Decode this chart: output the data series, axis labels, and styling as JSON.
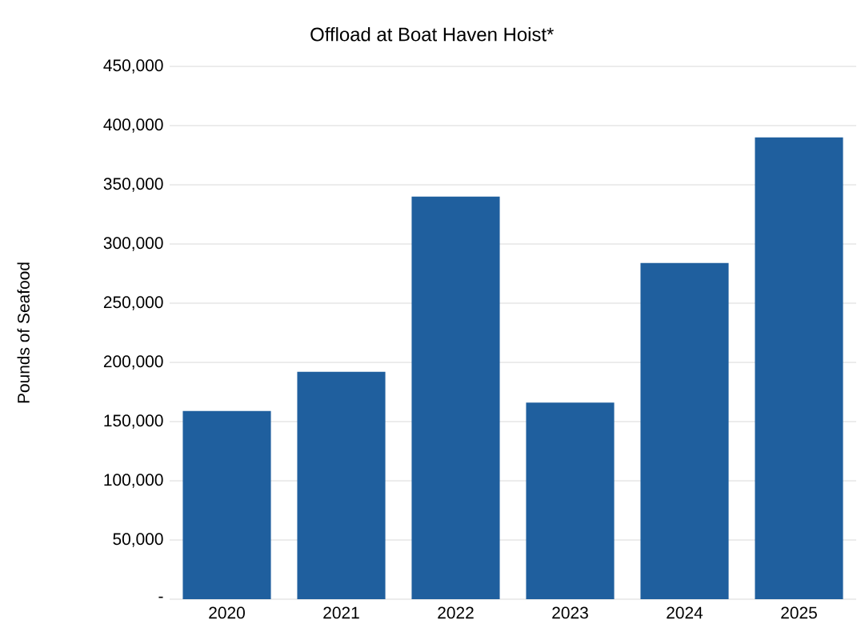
{
  "chart_data": {
    "type": "bar",
    "title": "Offload at Boat Haven Hoist*",
    "ylabel": "Pounds of Seafood",
    "categories": [
      "2020",
      "2021",
      "2022",
      "2023",
      "2024",
      "2025"
    ],
    "values": [
      159000,
      192000,
      340000,
      166000,
      284000,
      390000
    ],
    "color": "#1f5f9e",
    "ylim": [
      0,
      450000
    ],
    "yticks": [
      {
        "value": 0,
        "label": "-"
      },
      {
        "value": 50000,
        "label": "50,000"
      },
      {
        "value": 100000,
        "label": "100,000"
      },
      {
        "value": 150000,
        "label": "150,000"
      },
      {
        "value": 200000,
        "label": "200,000"
      },
      {
        "value": 250000,
        "label": "250,000"
      },
      {
        "value": 300000,
        "label": "300,000"
      },
      {
        "value": 350000,
        "label": "350,000"
      },
      {
        "value": 400000,
        "label": "400,000"
      },
      {
        "value": 450000,
        "label": "450,000"
      }
    ],
    "grid": "y"
  }
}
